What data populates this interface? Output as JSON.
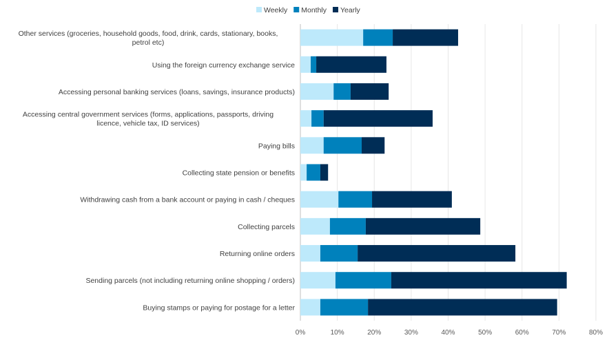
{
  "chart_data": {
    "type": "bar",
    "orientation": "horizontal",
    "stacked": true,
    "categories": [
      "Other services (groceries, household goods, food, drink, cards, stationary, books, petrol etc)",
      "Using the foreign currency exchange service",
      "Accessing personal banking services (loans, savings, insurance products)",
      "Accessing central government services (forms, applications, passports, driving licence, vehicle tax, ID services)",
      "Paying bills",
      "Collecting state pension or benefits",
      "Withdrawing cash from a bank account or paying in cash / cheques",
      "Collecting parcels",
      "Returning online orders",
      "Sending parcels (not including returning online shopping / orders)",
      "Buying stamps or paying for postage for a letter"
    ],
    "series": [
      {
        "name": "Weekly",
        "color": "#bde9fb",
        "values": [
          17.0,
          2.8,
          9.0,
          3.0,
          6.3,
          1.7,
          10.3,
          8.0,
          5.4,
          9.5,
          5.4
        ]
      },
      {
        "name": "Monthly",
        "color": "#0081bc",
        "values": [
          8.0,
          1.5,
          4.6,
          3.3,
          10.3,
          3.7,
          9.1,
          9.7,
          10.1,
          15.1,
          12.9
        ]
      },
      {
        "name": "Yearly",
        "color": "#002d56",
        "values": [
          17.7,
          19.0,
          10.3,
          29.5,
          6.2,
          2.1,
          21.6,
          31.0,
          42.7,
          47.5,
          51.2
        ]
      }
    ],
    "xlim": [
      0,
      80
    ],
    "xticks": [
      "0%",
      "10%",
      "20%",
      "30%",
      "40%",
      "50%",
      "60%",
      "70%",
      "80%"
    ],
    "grid": true,
    "legend_position": "top"
  }
}
